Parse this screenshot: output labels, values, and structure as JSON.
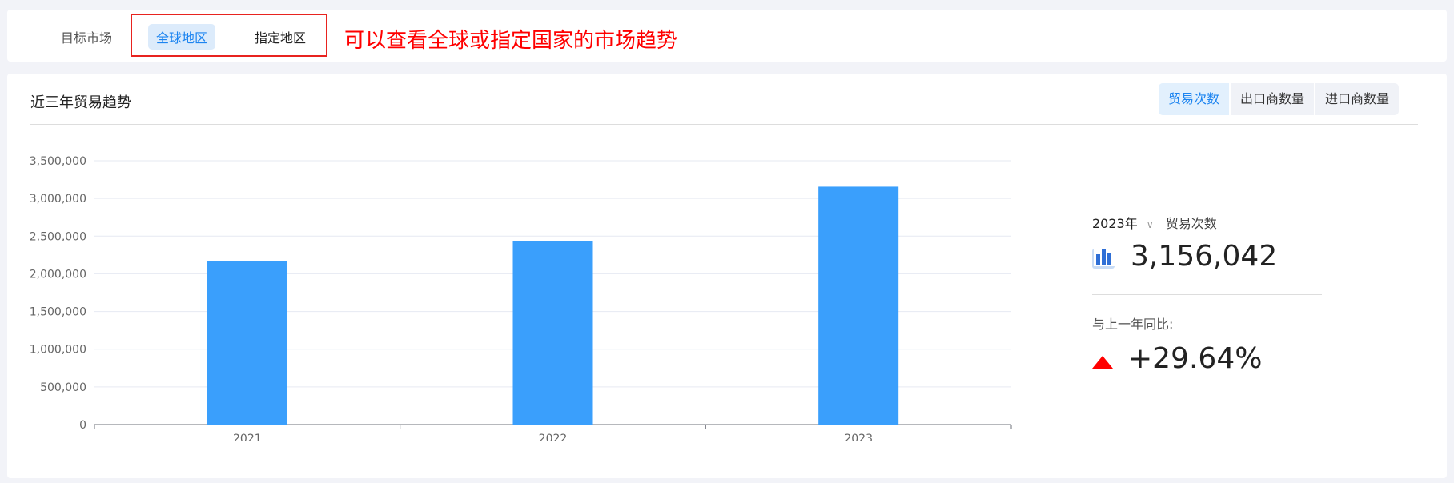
{
  "filter": {
    "label": "目标市场",
    "options": [
      "全球地区",
      "指定地区"
    ],
    "selected": "全球地区"
  },
  "annotation": "可以查看全球或指定国家的市场趋势",
  "panel": {
    "title": "近三年贸易趋势",
    "tabs": [
      "贸易次数",
      "出口商数量",
      "进口商数量"
    ],
    "active_tab": "贸易次数"
  },
  "summary": {
    "year": "2023年",
    "metric": "贸易次数",
    "value": "3,156,042",
    "compare_label": "与上一年同比:",
    "change": "+29.64%",
    "trend": "up",
    "up_color": "#ff0000"
  },
  "chart_data": {
    "type": "bar",
    "categories": [
      "2021",
      "2022",
      "2023"
    ],
    "values": [
      2164000,
      2434466,
      3156042
    ],
    "ylim": [
      0,
      3500000
    ],
    "yticks": [
      "0",
      "500,000",
      "1,000,000",
      "1,500,000",
      "2,000,000",
      "2,500,000",
      "3,000,000",
      "3,500,000"
    ],
    "grid": true,
    "bar_color": "#3a9ffc"
  }
}
